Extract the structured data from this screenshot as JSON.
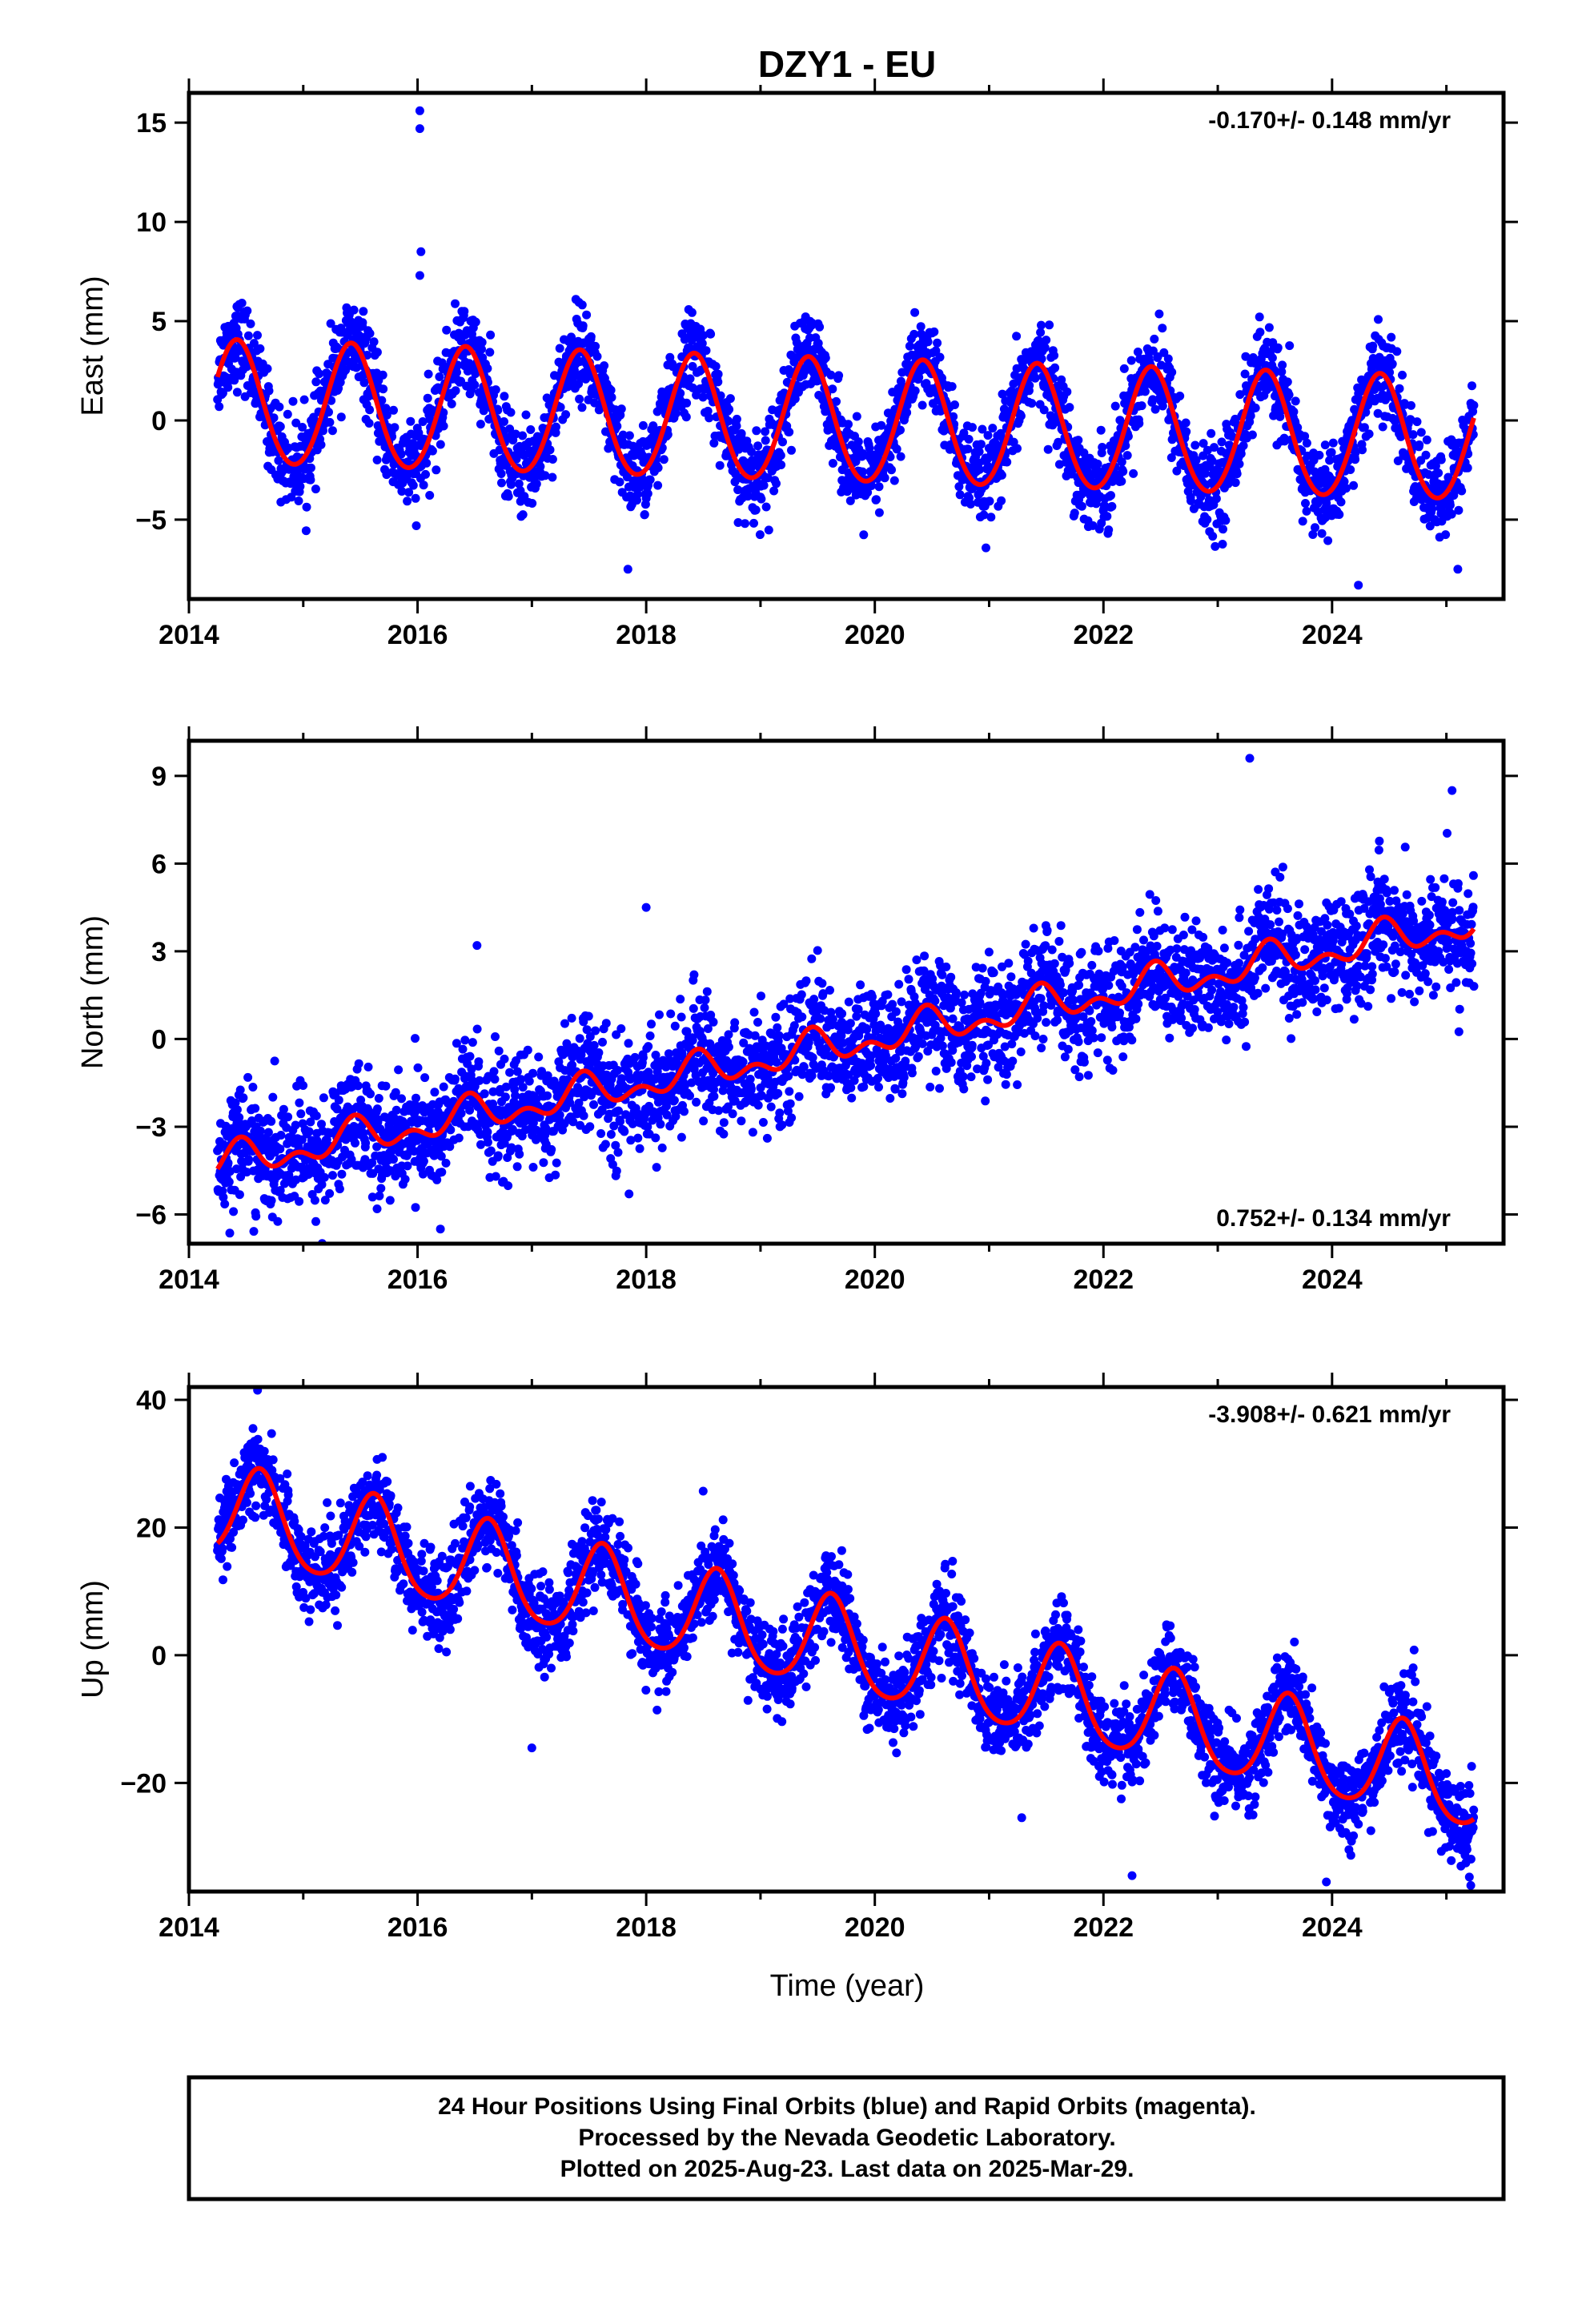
{
  "chart_data": {
    "title": "DZY1 - EU",
    "type": "scatter",
    "xlabel": "Time (year)",
    "xlim": [
      2014.0,
      2025.5
    ],
    "xticks": [
      2014,
      2016,
      2018,
      2020,
      2022,
      2024
    ],
    "x_range_data": [
      2014.25,
      2025.24
    ],
    "colors": {
      "points": "#0000ff",
      "model": "#ff0000",
      "frame": "#000000"
    },
    "panels": [
      {
        "component": "East",
        "ylabel": "East (mm)",
        "ylim": [
          -9,
          16.5
        ],
        "yticks": [
          -5,
          0,
          5,
          10,
          15
        ],
        "rate_label": "-0.170+/- 0.148 mm/yr",
        "rate_position": "top-right",
        "model": {
          "offset": 0.8,
          "rate": -0.17,
          "amplitude": 3.1,
          "peak_phase": 0.42,
          "semiannual": 0.2
        },
        "scatter_sd": 1.1,
        "outliers": [
          [
            2016.02,
            15.6
          ],
          [
            2016.02,
            14.7
          ],
          [
            2016.03,
            8.5
          ],
          [
            2016.02,
            7.3
          ],
          [
            2024.23,
            -8.3
          ],
          [
            2017.84,
            -7.5
          ],
          [
            2025.1,
            -7.5
          ]
        ]
      },
      {
        "component": "North",
        "ylabel": "North (mm)",
        "ylim": [
          -7,
          10.2
        ],
        "yticks": [
          -6,
          -3,
          0,
          3,
          6,
          9
        ],
        "rate_label": "0.752+/- 0.134 mm/yr",
        "rate_position": "bottom-right",
        "model": {
          "offset": -4.3,
          "rate": 0.752,
          "amplitude": 0.45,
          "peak_phase": 0.45,
          "semiannual": 0.35
        },
        "scatter_sd": 0.95,
        "outliers": [
          [
            2023.28,
            9.6
          ],
          [
            2025.05,
            8.5
          ],
          [
            2018.0,
            4.5
          ],
          [
            2016.52,
            3.2
          ],
          [
            2016.2,
            -6.5
          ],
          [
            2017.85,
            -5.3
          ]
        ]
      },
      {
        "component": "Up",
        "ylabel": "Up (mm)",
        "ylim": [
          -37,
          42
        ],
        "yticks": [
          -20,
          0,
          20,
          40
        ],
        "rate_label": "-3.908+/- 0.621 mm/yr",
        "rate_position": "top-right",
        "model": {
          "offset": 22.5,
          "rate": -3.908,
          "amplitude": 7.2,
          "peak_phase": 0.62,
          "semiannual": 1.0
        },
        "scatter_sd": 3.4,
        "outliers": [
          [
            2014.6,
            41.5
          ],
          [
            2023.95,
            -35.5
          ],
          [
            2022.25,
            -34.5
          ],
          [
            2017.0,
            -14.5
          ]
        ]
      }
    ]
  },
  "footer": {
    "line1": "24 Hour Positions Using Final Orbits (blue) and Rapid Orbits (magenta).",
    "line2": "Processed by the Nevada Geodetic Laboratory.",
    "line3": "Plotted on 2025-Aug-23. Last data on 2025-Mar-29."
  }
}
